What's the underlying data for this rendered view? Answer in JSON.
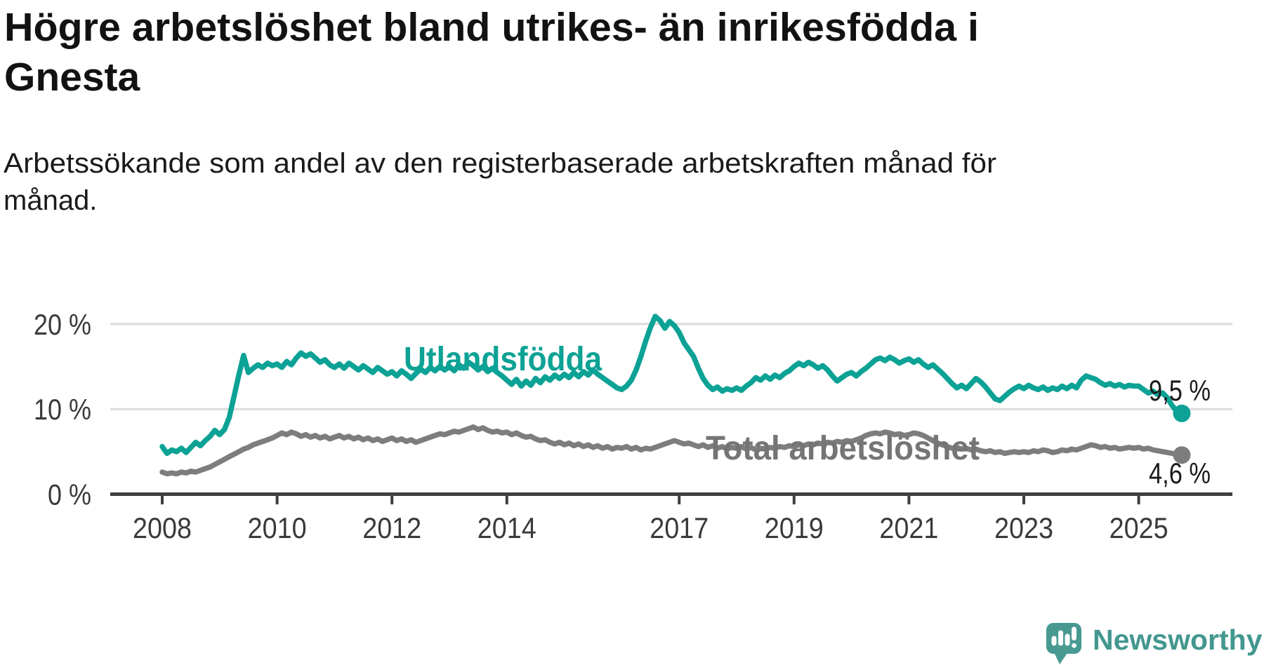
{
  "title": {
    "lines": [
      "Högre arbetslöshet bland utrikes- än inrikesfödda i",
      "Gnesta"
    ]
  },
  "subtitle": {
    "lines": [
      "Arbetssökande som andel av den registerbaserade arbetskraften månad för",
      "månad."
    ]
  },
  "chart_data": {
    "type": "line",
    "title": "Högre arbetslöshet bland utrikes- än inrikesfödda i Gnesta",
    "unit": "%",
    "grid": "horizontal-only",
    "legend": "inline-series-labels",
    "ylim": [
      0,
      24
    ],
    "x_axis": {
      "ticks": [
        {
          "year": 2008,
          "label": "2008"
        },
        {
          "year": 2010,
          "label": "2010"
        },
        {
          "year": 2012,
          "label": "2012"
        },
        {
          "year": 2014,
          "label": "2014"
        },
        {
          "year": 2017,
          "label": "2017"
        },
        {
          "year": 2019,
          "label": "2019"
        },
        {
          "year": 2021,
          "label": "2021"
        },
        {
          "year": 2023,
          "label": "2023"
        },
        {
          "year": 2025,
          "label": "2025"
        }
      ]
    },
    "y_axis": {
      "ticks": [
        {
          "value": 0,
          "label": "0 %"
        },
        {
          "value": 10,
          "label": "10 %"
        },
        {
          "value": 20,
          "label": "20 %"
        }
      ]
    },
    "series": [
      {
        "id": "utlandsfodda",
        "name": "Utlandsfödda",
        "color": "#0CA295",
        "label_color": "#0CA295",
        "start_year": 2008,
        "frequency": "monthly",
        "end_label": "9,5 %",
        "end_value": 9.5,
        "values": [
          5.6,
          4.8,
          5.2,
          5.0,
          5.4,
          4.9,
          5.5,
          6.1,
          5.7,
          6.3,
          6.8,
          7.5,
          7.0,
          7.6,
          9.0,
          11.5,
          14.0,
          16.3,
          14.3,
          14.8,
          15.2,
          14.9,
          15.4,
          15.1,
          15.3,
          14.9,
          15.6,
          15.2,
          16.0,
          16.6,
          16.2,
          16.5,
          16.0,
          15.5,
          15.8,
          15.2,
          14.9,
          15.3,
          14.8,
          15.4,
          15.0,
          14.6,
          15.1,
          14.7,
          14.3,
          14.9,
          14.5,
          14.1,
          14.4,
          13.9,
          14.5,
          14.1,
          13.6,
          14.2,
          14.7,
          14.3,
          14.9,
          14.5,
          15.0,
          14.6,
          15.0,
          14.5,
          15.2,
          14.8,
          15.5,
          15.1,
          14.6,
          15.0,
          14.4,
          14.8,
          14.3,
          13.9,
          13.4,
          12.9,
          13.5,
          12.7,
          13.3,
          12.8,
          13.6,
          13.1,
          13.8,
          13.4,
          14.0,
          13.6,
          14.1,
          13.7,
          14.3,
          13.8,
          14.4,
          14.0,
          14.6,
          14.1,
          13.7,
          13.3,
          12.9,
          12.5,
          12.3,
          12.7,
          13.4,
          14.6,
          16.2,
          18.0,
          19.6,
          20.9,
          20.4,
          19.5,
          20.3,
          19.8,
          19.0,
          17.8,
          17.0,
          16.2,
          14.8,
          13.6,
          12.8,
          12.3,
          12.6,
          12.1,
          12.4,
          12.2,
          12.5,
          12.2,
          12.7,
          13.1,
          13.7,
          13.4,
          13.9,
          13.5,
          14.0,
          13.7,
          14.2,
          14.5,
          15.0,
          15.4,
          15.1,
          15.5,
          15.2,
          14.8,
          15.1,
          14.6,
          13.9,
          13.3,
          13.7,
          14.1,
          14.3,
          13.9,
          14.4,
          14.8,
          15.3,
          15.8,
          16.0,
          15.7,
          16.1,
          15.8,
          15.4,
          15.7,
          15.9,
          15.5,
          15.8,
          15.3,
          14.9,
          15.2,
          14.7,
          14.2,
          13.6,
          13.0,
          12.5,
          12.8,
          12.4,
          13.0,
          13.6,
          13.2,
          12.6,
          11.9,
          11.2,
          11.0,
          11.5,
          12.0,
          12.4,
          12.7,
          12.4,
          12.8,
          12.5,
          12.3,
          12.6,
          12.2,
          12.5,
          12.3,
          12.7,
          12.4,
          12.8,
          12.5,
          13.4,
          13.9,
          13.7,
          13.5,
          13.1,
          12.8,
          13.0,
          12.7,
          12.9,
          12.6,
          12.8,
          12.7,
          12.7,
          12.3,
          11.9,
          12.1,
          11.7,
          11.9,
          11.3,
          10.4,
          9.7,
          9.5
        ]
      },
      {
        "id": "total",
        "name": "Total arbetslöshet",
        "color": "#7D7D7D",
        "label_color": "#757575",
        "start_year": 2008,
        "frequency": "monthly",
        "end_label": "4,6 %",
        "end_value": 4.6,
        "values": [
          2.6,
          2.4,
          2.5,
          2.4,
          2.6,
          2.5,
          2.7,
          2.6,
          2.8,
          3.0,
          3.2,
          3.5,
          3.8,
          4.1,
          4.4,
          4.7,
          5.0,
          5.3,
          5.5,
          5.8,
          6.0,
          6.2,
          6.4,
          6.6,
          6.9,
          7.2,
          7.0,
          7.3,
          7.1,
          6.8,
          7.0,
          6.7,
          6.9,
          6.6,
          6.8,
          6.5,
          6.7,
          6.9,
          6.6,
          6.8,
          6.5,
          6.7,
          6.4,
          6.6,
          6.3,
          6.5,
          6.2,
          6.4,
          6.6,
          6.3,
          6.5,
          6.2,
          6.4,
          6.1,
          6.3,
          6.5,
          6.7,
          6.9,
          7.1,
          7.0,
          7.2,
          7.4,
          7.3,
          7.5,
          7.7,
          7.9,
          7.6,
          7.8,
          7.5,
          7.3,
          7.4,
          7.2,
          7.3,
          7.0,
          7.2,
          6.9,
          6.7,
          6.8,
          6.5,
          6.3,
          6.4,
          6.1,
          5.9,
          6.1,
          5.8,
          6.0,
          5.7,
          5.9,
          5.6,
          5.8,
          5.5,
          5.7,
          5.4,
          5.6,
          5.3,
          5.5,
          5.4,
          5.6,
          5.3,
          5.5,
          5.2,
          5.4,
          5.3,
          5.5,
          5.7,
          5.9,
          6.1,
          6.3,
          6.1,
          5.9,
          6.0,
          5.8,
          5.6,
          5.8,
          5.5,
          5.7,
          5.4,
          5.6,
          5.3,
          5.5,
          5.4,
          5.6,
          5.3,
          5.5,
          5.2,
          5.4,
          5.3,
          5.5,
          5.4,
          5.6,
          5.5,
          5.7,
          5.6,
          5.8,
          5.7,
          5.9,
          5.8,
          6.0,
          5.9,
          6.1,
          6.0,
          6.2,
          6.1,
          6.3,
          6.2,
          6.4,
          6.6,
          6.9,
          7.1,
          7.2,
          7.1,
          7.3,
          7.2,
          7.0,
          7.1,
          6.9,
          7.0,
          7.2,
          7.1,
          6.9,
          6.6,
          6.3,
          6.0,
          5.8,
          5.6,
          5.4,
          5.5,
          5.3,
          5.4,
          5.2,
          5.3,
          5.1,
          5.0,
          5.1,
          4.9,
          5.0,
          4.8,
          4.9,
          5.0,
          4.9,
          5.0,
          4.9,
          5.1,
          5.0,
          5.2,
          5.1,
          4.9,
          5.0,
          5.2,
          5.1,
          5.3,
          5.2,
          5.4,
          5.6,
          5.8,
          5.7,
          5.5,
          5.6,
          5.4,
          5.5,
          5.3,
          5.4,
          5.5,
          5.4,
          5.5,
          5.3,
          5.4,
          5.2,
          5.1,
          5.0,
          4.9,
          4.8,
          4.7,
          4.6
        ]
      }
    ]
  },
  "colors": {
    "background": "#ffffff",
    "accent_teal": "#0CA295",
    "series_gray": "#7D7D7D",
    "gridline": "#DBDBDB",
    "axis": "#3F3F3F",
    "text_dark": "#121212",
    "brand_teal": "#43978F",
    "logo_bubble": "#479992"
  },
  "branding": {
    "logo_text": "Newsworthy",
    "logo_icon": "newsworthy-speech-bubble-bar-chart-icon"
  }
}
